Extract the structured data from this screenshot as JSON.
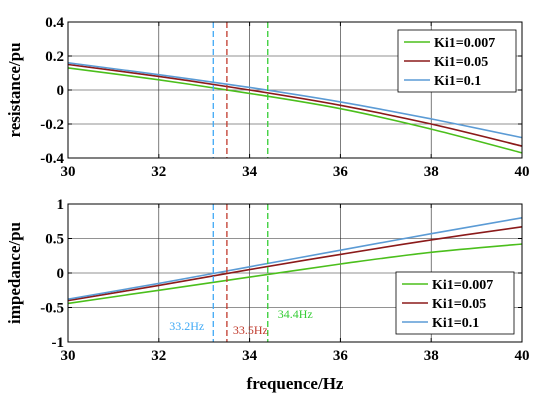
{
  "chart_data": [
    {
      "type": "line",
      "xlabel": "frequence/Hz",
      "ylabel": "resistance/pu",
      "xlim": [
        30,
        40
      ],
      "ylim": [
        -0.4,
        0.4
      ],
      "x_ticks": [
        "30",
        "32",
        "34",
        "36",
        "38",
        "40"
      ],
      "y_ticks": [
        "-0.4",
        "-0.2",
        "0",
        "0.2",
        "0.4"
      ],
      "grid": true,
      "legend": "top-right",
      "x": [
        30,
        32,
        34,
        36,
        38,
        40
      ],
      "series": [
        {
          "name": "Ki1=0.007",
          "color": "#4bbf1c",
          "values": [
            0.13,
            0.06,
            -0.02,
            -0.11,
            -0.23,
            -0.37
          ]
        },
        {
          "name": "Ki1=0.05",
          "color": "#8b1a1a",
          "values": [
            0.15,
            0.08,
            0.0,
            -0.09,
            -0.2,
            -0.33
          ]
        },
        {
          "name": "Ki1=0.1",
          "color": "#5b9bd5",
          "values": [
            0.16,
            0.09,
            0.015,
            -0.07,
            -0.17,
            -0.28
          ]
        }
      ],
      "vlines": [
        {
          "x": 33.2,
          "color": "#3fa9f5"
        },
        {
          "x": 33.5,
          "color": "#c0392b"
        },
        {
          "x": 34.4,
          "color": "#33cc33"
        }
      ]
    },
    {
      "type": "line",
      "xlabel": "frequence/Hz",
      "ylabel": "impedance/pu",
      "xlim": [
        30,
        40
      ],
      "ylim": [
        -1,
        1
      ],
      "x_ticks": [
        "30",
        "32",
        "34",
        "36",
        "38",
        "40"
      ],
      "y_ticks": [
        "-1",
        "-0.5",
        "0",
        "0.5",
        "1"
      ],
      "grid": true,
      "legend": "bottom-right",
      "x": [
        30,
        32,
        34,
        36,
        38,
        40
      ],
      "series": [
        {
          "name": "Ki1=0.007",
          "color": "#4bbf1c",
          "values": [
            -0.44,
            -0.25,
            -0.06,
            0.13,
            0.3,
            0.42
          ]
        },
        {
          "name": "Ki1=0.05",
          "color": "#8b1a1a",
          "values": [
            -0.4,
            -0.18,
            0.05,
            0.27,
            0.48,
            0.67
          ]
        },
        {
          "name": "Ki1=0.1",
          "color": "#5b9bd5",
          "values": [
            -0.38,
            -0.15,
            0.09,
            0.33,
            0.57,
            0.8
          ]
        }
      ],
      "vlines": [
        {
          "x": 33.2,
          "color": "#3fa9f5"
        },
        {
          "x": 33.5,
          "color": "#c0392b"
        },
        {
          "x": 34.4,
          "color": "#33cc33"
        }
      ],
      "annotations": [
        {
          "text": "33.2Hz",
          "x": 33.2,
          "color": "#3fa9f5"
        },
        {
          "text": "33.5Hz",
          "x": 33.5,
          "color": "#c0392b"
        },
        {
          "text": "34.4Hz",
          "x": 34.4,
          "color": "#33cc33"
        }
      ]
    }
  ]
}
